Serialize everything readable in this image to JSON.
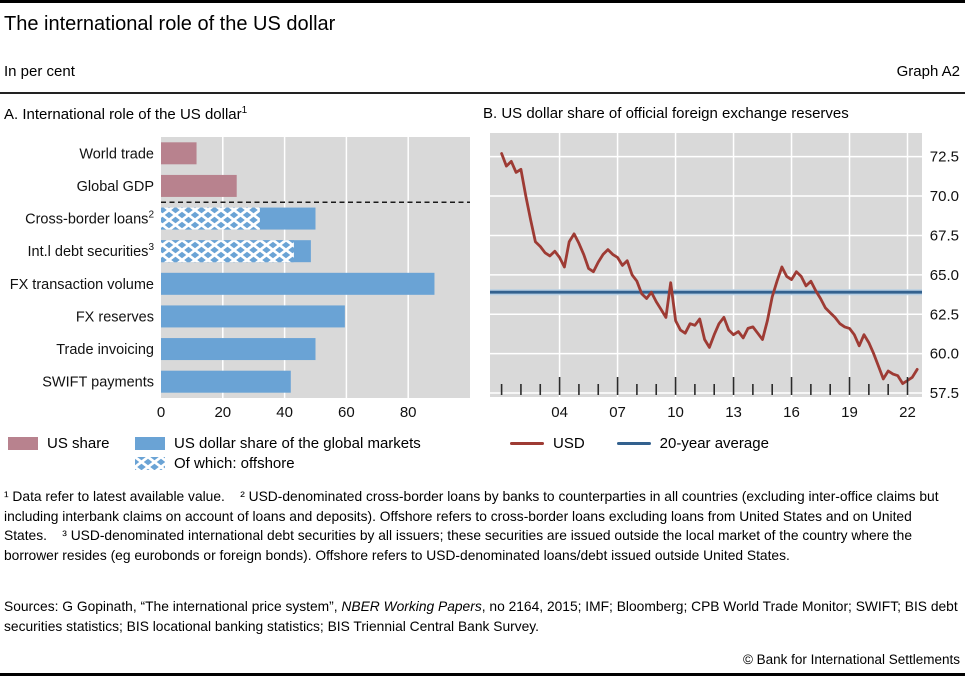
{
  "header": {
    "title": "The international role of the US dollar",
    "units": "In per cent",
    "graph_label": "Graph A2"
  },
  "colors": {
    "plot_bg": "#d9d9d9",
    "grid": "#ffffff",
    "pink": "#b8828e",
    "blue": "#6aa3d5",
    "hatch_line": "#ffffff",
    "usd_line": "#9e3b34",
    "avg_line": "#33618e",
    "avg_halo": "#b7cfe3",
    "separator": "#1a1a1a"
  },
  "chart_data": [
    {
      "type": "bar",
      "orientation": "horizontal",
      "title": "A. International role of the US dollar",
      "title_sup": "1",
      "xlim": [
        0,
        100
      ],
      "xticks": [
        0,
        20,
        40,
        60,
        80
      ],
      "grid": true,
      "categories": [
        "World trade",
        "Global GDP",
        "Cross-border loans",
        "Int.l debt securities",
        "FX transaction volume",
        "FX reserves",
        "Trade invoicing",
        "SWIFT payments"
      ],
      "category_sups": [
        "",
        "",
        "2",
        "3",
        "",
        "",
        "",
        ""
      ],
      "separator_after_row": 2,
      "series": [
        {
          "name": "US share",
          "values": [
            11.5,
            24.5,
            null,
            null,
            null,
            null,
            null,
            null
          ]
        },
        {
          "name": "US dollar share of the global markets",
          "values": [
            null,
            null,
            50,
            48.5,
            88.5,
            59.5,
            50,
            42
          ]
        },
        {
          "name": "Of which: offshore",
          "values": [
            null,
            null,
            32,
            43,
            null,
            null,
            null,
            null
          ]
        }
      ]
    },
    {
      "type": "line",
      "title": "B. US dollar share of official foreign exchange reserves",
      "xlim": [
        2000.4,
        2022.75
      ],
      "ylim": [
        57.25,
        74.0
      ],
      "yticks": [
        57.5,
        60.0,
        62.5,
        65.0,
        67.5,
        70.0,
        72.5
      ],
      "year_ticks_from": 2001,
      "year_ticks_to": 2022,
      "labeled_ticks": [
        {
          "year": 2004,
          "label": "04"
        },
        {
          "year": 2007,
          "label": "07"
        },
        {
          "year": 2010,
          "label": "10"
        },
        {
          "year": 2013,
          "label": "13"
        },
        {
          "year": 2016,
          "label": "16"
        },
        {
          "year": 2019,
          "label": "19"
        },
        {
          "year": 2022,
          "label": "22"
        }
      ],
      "series": [
        {
          "name": "USD",
          "x_start": 2001.0,
          "x_step": 0.25,
          "values": [
            72.7,
            71.9,
            72.2,
            71.5,
            71.7,
            70.0,
            68.5,
            67.1,
            66.8,
            66.4,
            66.2,
            66.5,
            66.1,
            65.5,
            67.1,
            67.6,
            67.0,
            66.3,
            65.4,
            65.2,
            65.8,
            66.3,
            66.6,
            66.3,
            66.1,
            65.6,
            65.9,
            65.0,
            64.6,
            63.8,
            63.5,
            63.9,
            63.3,
            62.8,
            62.3,
            64.5,
            62.1,
            61.5,
            61.3,
            61.9,
            61.8,
            62.2,
            60.9,
            60.4,
            61.2,
            61.9,
            62.3,
            61.5,
            61.2,
            61.4,
            61.0,
            61.6,
            61.7,
            61.3,
            60.9,
            62.1,
            63.6,
            64.6,
            65.5,
            64.9,
            64.7,
            65.2,
            64.9,
            64.3,
            64.6,
            64.0,
            63.5,
            62.9,
            62.6,
            62.3,
            61.9,
            61.7,
            61.6,
            61.2,
            60.5,
            61.2,
            60.7,
            60.0,
            59.2,
            58.4,
            58.9,
            58.7,
            58.6,
            58.1,
            58.3,
            58.5,
            59.0
          ]
        },
        {
          "name": "20-year average",
          "value": 63.9
        }
      ]
    }
  ],
  "legend": {
    "panel_a": [
      {
        "label": "US share",
        "swatch": "pink-solid"
      },
      {
        "label": "US dollar share of the global markets",
        "swatch": "blue-solid"
      },
      {
        "label": "Of which: offshore",
        "swatch": "blue-hatch"
      }
    ],
    "panel_b": [
      {
        "label": "USD",
        "swatch": "red-line"
      },
      {
        "label": "20-year average",
        "swatch": "blue-line"
      }
    ]
  },
  "footnotes": "¹ Data refer to latest available value.    ² USD-denominated cross-border loans by banks to counterparties in all countries (excluding inter-office claims but including interbank claims on account of loans and deposits). Offshore refers to cross-border loans excluding loans from United States and on United States.    ³ USD-denominated international debt securities by all issuers; these securities are issued outside the local market of the country where the borrower resides (eg eurobonds or foreign bonds). Offshore refers to USD-denominated loans/debt issued outside United States.",
  "sources": {
    "prefix": "Sources: G Gopinath, “The international price system”, ",
    "italic": "NBER Working Papers",
    "suffix": ", no 2164, 2015; IMF; Bloomberg; CPB World Trade Monitor; SWIFT; BIS debt securities statistics; BIS locational banking statistics; BIS Triennial Central Bank Survey."
  },
  "copyright": "© Bank for International Settlements"
}
